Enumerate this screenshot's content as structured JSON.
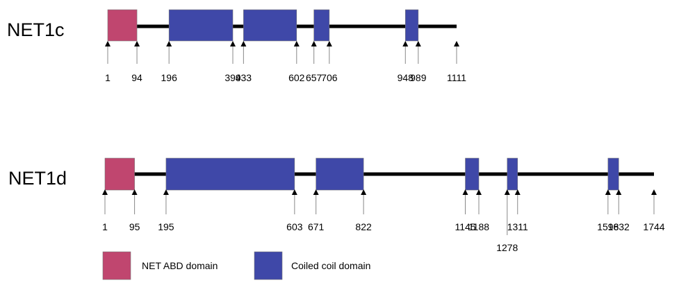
{
  "colors": {
    "abd": "#c0466f",
    "coil": "#3f48a8",
    "backbone": "#000000",
    "arrow": "#000000",
    "tick": "#888888"
  },
  "proteins": [
    {
      "name": "NET1c",
      "length": 1111,
      "abd": [
        [
          1,
          94
        ]
      ],
      "coils": [
        [
          196,
          399
        ],
        [
          433,
          602
        ],
        [
          657,
          706
        ],
        [
          948,
          989
        ]
      ],
      "ticks": [
        1,
        94,
        196,
        399,
        433,
        602,
        657,
        706,
        948,
        989,
        1111
      ]
    },
    {
      "name": "NET1d",
      "length": 1744,
      "abd": [
        [
          1,
          95
        ]
      ],
      "coils": [
        [
          195,
          603
        ],
        [
          671,
          822
        ],
        [
          1145,
          1188
        ],
        [
          1278,
          1311
        ],
        [
          1598,
          1632
        ]
      ],
      "ticks": [
        1,
        95,
        195,
        603,
        671,
        822,
        1145,
        1188,
        1278,
        1311,
        1598,
        1632,
        1744
      ]
    }
  ],
  "legend": {
    "abd_label": "NET ABD domain",
    "coil_label": "Coiled coil domain"
  }
}
